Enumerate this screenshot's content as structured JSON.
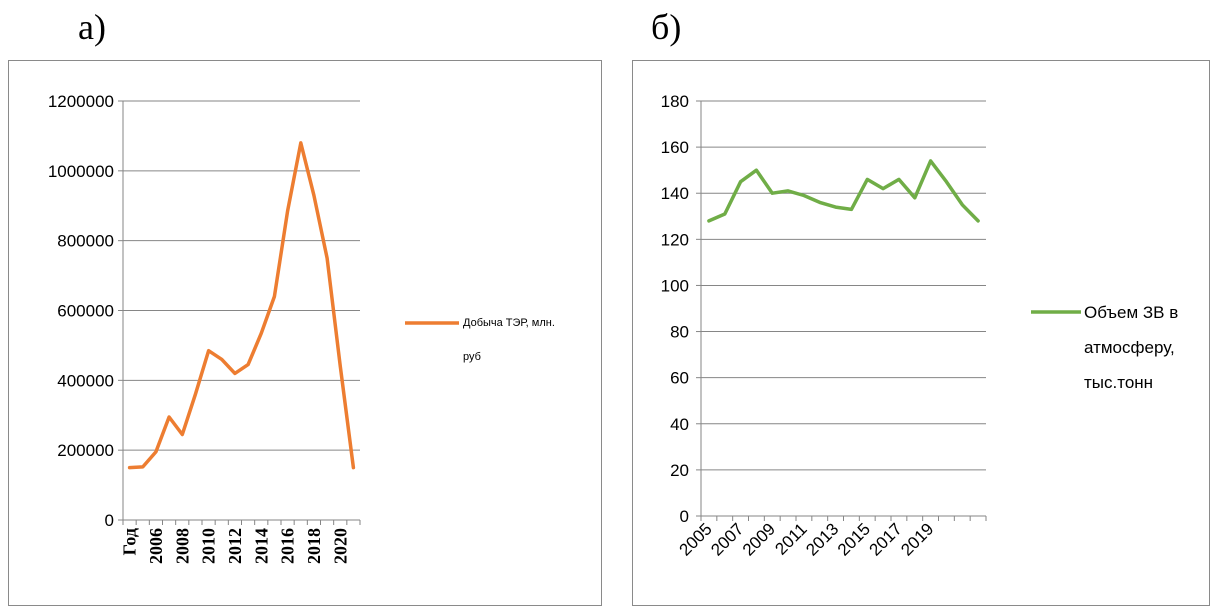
{
  "panels": {
    "a_label": "а)",
    "b_label": "б)"
  },
  "chart_data": [
    {
      "type": "line",
      "panel": "а)",
      "xlabel": "",
      "ylabel": "",
      "ylim": [
        0,
        1200000
      ],
      "yticks": [
        "0",
        "200000",
        "400000",
        "600000",
        "800000",
        "1000000",
        "1200000"
      ],
      "xticks": [
        "Год",
        "2006",
        "2008",
        "2010",
        "2012",
        "2014",
        "2016",
        "2018",
        "2020"
      ],
      "x": [
        2004,
        2005,
        2006,
        2007,
        2008,
        2009,
        2010,
        2011,
        2012,
        2013,
        2014,
        2015,
        2016,
        2017,
        2018,
        2019,
        2020,
        2021
      ],
      "series": [
        {
          "name": "Добыча ТЭР, млн. руб",
          "color": "#ED7D31",
          "values": [
            150000,
            152000,
            195000,
            295000,
            245000,
            360000,
            485000,
            460000,
            420000,
            445000,
            535000,
            640000,
            885000,
            1080000,
            930000,
            750000,
            440000,
            150000
          ]
        }
      ],
      "legend": {
        "position": "right",
        "line1": "Добыча ТЭР, млн.",
        "line2": "руб"
      },
      "grid": true
    },
    {
      "type": "line",
      "panel": "б)",
      "xlabel": "",
      "ylabel": "",
      "ylim": [
        0,
        180
      ],
      "yticks": [
        "0",
        "20",
        "40",
        "60",
        "80",
        "100",
        "120",
        "140",
        "160",
        "180"
      ],
      "xticks": [
        "2005",
        "2007",
        "2009",
        "2011",
        "2013",
        "2015",
        "2017",
        "2019"
      ],
      "x": [
        2005,
        2006,
        2007,
        2008,
        2009,
        2010,
        2011,
        2012,
        2013,
        2014,
        2015,
        2016,
        2017,
        2018,
        2019,
        2020,
        2021,
        2022
      ],
      "series": [
        {
          "name": "Объем ЗВ в атмосферу, тыс.тонн",
          "color": "#70AD47",
          "values": [
            128,
            131,
            145,
            150,
            140,
            141,
            139,
            136,
            134,
            133,
            146,
            142,
            146,
            138,
            154,
            145,
            135,
            128
          ]
        }
      ],
      "legend": {
        "position": "right",
        "line1": "Объем ЗВ в",
        "line2": "атмосферу,",
        "line3": "тыс.тонн"
      },
      "grid": true
    }
  ]
}
